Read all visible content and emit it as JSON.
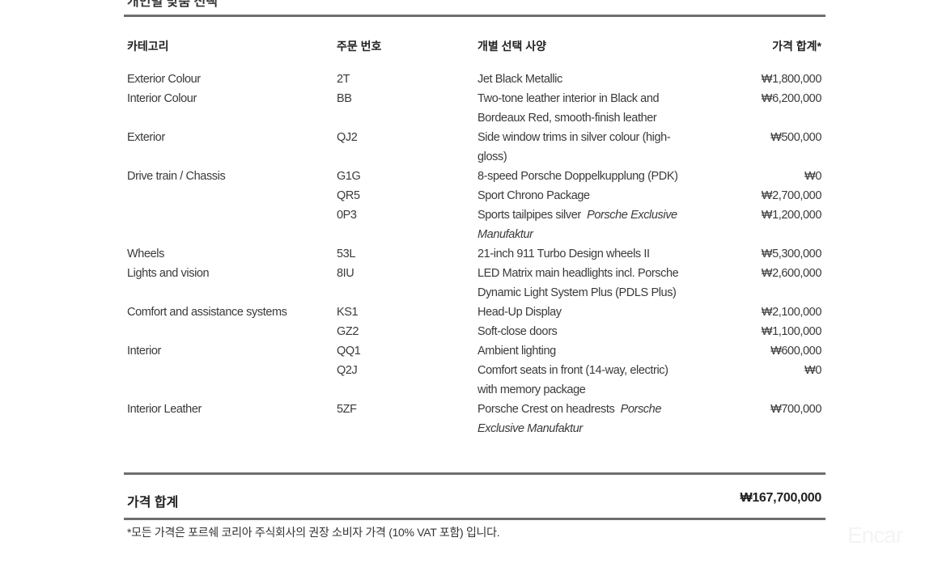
{
  "section_title": "개인별 맞춤 선택",
  "headers": {
    "category": "카테고리",
    "code": "주문 번호",
    "option": "개별 선택 사양",
    "price": "가격 합계*"
  },
  "rows": [
    {
      "category": "Exterior Colour",
      "code": "2T",
      "lines": [
        [
          {
            "text": "Jet Black Metallic"
          }
        ]
      ],
      "price": "₩1,800,000"
    },
    {
      "category": "Interior Colour",
      "code": "BB",
      "lines": [
        [
          {
            "text": "Two-tone leather interior in Black and"
          }
        ],
        [
          {
            "text": "Bordeaux Red, smooth-finish leather"
          }
        ]
      ],
      "price": "₩6,200,000"
    },
    {
      "category": "Exterior",
      "code": "QJ2",
      "lines": [
        [
          {
            "text": "Side window trims in silver colour (high-"
          }
        ],
        [
          {
            "text": "gloss)"
          }
        ]
      ],
      "price": "₩500,000"
    },
    {
      "category": "Drive train / Chassis",
      "code": "G1G",
      "lines": [
        [
          {
            "text": "8-speed Porsche Doppelkupplung (PDK)"
          }
        ]
      ],
      "price": "₩0"
    },
    {
      "category": "",
      "code": "QR5",
      "lines": [
        [
          {
            "text": "Sport Chrono Package"
          }
        ]
      ],
      "price": "₩2,700,000"
    },
    {
      "category": "",
      "code": "0P3",
      "lines": [
        [
          {
            "text": "Sports tailpipes silver  "
          },
          {
            "text": "Porsche Exclusive",
            "italic": true
          }
        ],
        [
          {
            "text": "Manufaktur",
            "italic": true
          }
        ]
      ],
      "price": "₩1,200,000"
    },
    {
      "category": "Wheels",
      "code": "53L",
      "lines": [
        [
          {
            "text": "21-inch 911 Turbo Design wheels II"
          }
        ]
      ],
      "price": "₩5,300,000"
    },
    {
      "category": "Lights and vision",
      "code": "8IU",
      "lines": [
        [
          {
            "text": "LED Matrix main headlights incl. Porsche"
          }
        ],
        [
          {
            "text": "Dynamic Light System Plus (PDLS Plus)"
          }
        ]
      ],
      "price": "₩2,600,000"
    },
    {
      "category": "Comfort and assistance systems",
      "code": "KS1",
      "lines": [
        [
          {
            "text": "Head-Up Display"
          }
        ]
      ],
      "price": "₩2,100,000"
    },
    {
      "category": "",
      "code": "GZ2",
      "lines": [
        [
          {
            "text": "Soft-close doors"
          }
        ]
      ],
      "price": "₩1,100,000"
    },
    {
      "category": "Interior",
      "code": "QQ1",
      "lines": [
        [
          {
            "text": "Ambient lighting"
          }
        ]
      ],
      "price": "₩600,000"
    },
    {
      "category": "",
      "code": "Q2J",
      "lines": [
        [
          {
            "text": "Comfort seats in front (14-way, electric)"
          }
        ],
        [
          {
            "text": "with memory package"
          }
        ]
      ],
      "price": "₩0"
    },
    {
      "category": "Interior Leather",
      "code": "5ZF",
      "lines": [
        [
          {
            "text": "Porsche Crest on headrests  "
          },
          {
            "text": "Porsche",
            "italic": true
          }
        ],
        [
          {
            "text": "Exclusive Manufaktur",
            "italic": true
          }
        ]
      ],
      "price": "₩700,000"
    }
  ],
  "total": {
    "label": "가격 합계",
    "value": "₩167,700,000"
  },
  "footnote": "*모든 가격은 포르쉐 코리아 주식회사의 권장 소비자 가격 (10% VAT 포함) 입니다.",
  "watermark": "Encar"
}
